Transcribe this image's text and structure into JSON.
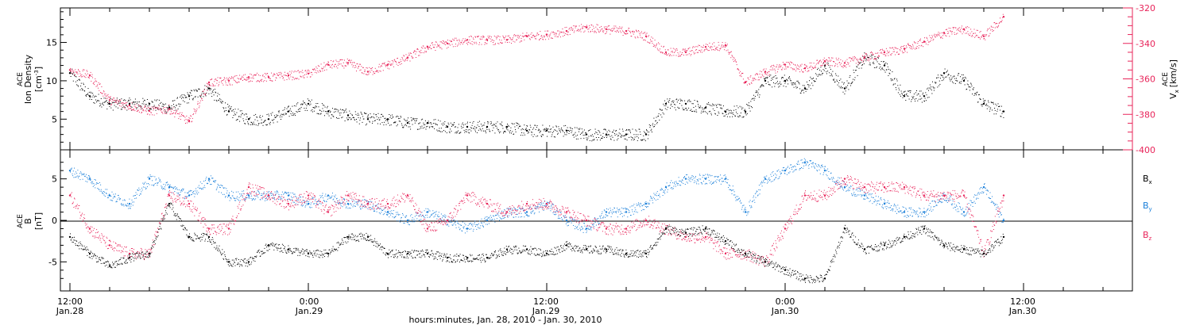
{
  "colors": {
    "black": "#000000",
    "pink": "#e8245a",
    "blue": "#1a7fd9"
  },
  "chart_data": [
    {
      "type": "scatter",
      "panel": "top",
      "ylabel_left": {
        "mission": "ACE",
        "quantity": "Ion Density",
        "unit": "[cm",
        "unit_sup": "-3",
        "unit_end": "]"
      },
      "ylabel_right": {
        "prefix": "V",
        "sub": "x",
        "mission": "ACE",
        "unit": "[km/s]"
      },
      "ylim_left": [
        1,
        19.5
      ],
      "ylim_right": [
        -400,
        -320
      ],
      "yticks_left": [
        5,
        10,
        15
      ],
      "yticks_right": [
        -320,
        -340,
        -360,
        -380,
        -400
      ],
      "series": [
        {
          "name": "Ion Density",
          "axis": "left",
          "color": "#000000",
          "x": [
            0,
            1,
            2,
            3,
            4,
            5,
            6,
            7,
            8,
            9,
            10,
            11,
            12,
            13,
            14,
            15,
            16,
            17,
            18,
            19,
            20,
            21,
            22,
            23,
            24,
            25,
            26,
            27,
            28,
            29,
            30,
            31,
            32,
            33,
            34,
            35,
            36,
            37,
            38,
            39,
            40,
            41,
            42,
            43,
            44,
            45,
            46,
            47
          ],
          "y": [
            11,
            8,
            7,
            7,
            7,
            6.5,
            8,
            9,
            6,
            5,
            5,
            6,
            7,
            6,
            5.5,
            5,
            5,
            4.5,
            4.5,
            4,
            4,
            4,
            4,
            3.5,
            3.5,
            3.5,
            3,
            3,
            3,
            3,
            7,
            7,
            6.5,
            6,
            6,
            10,
            10,
            9,
            12,
            9,
            13,
            12,
            8,
            8,
            11,
            10,
            7,
            6
          ]
        },
        {
          "name": "Vx",
          "axis": "right",
          "color": "#e8245a",
          "x": [
            0,
            1,
            2,
            3,
            4,
            5,
            6,
            7,
            8,
            9,
            10,
            11,
            12,
            13,
            14,
            15,
            16,
            17,
            18,
            19,
            20,
            21,
            22,
            23,
            24,
            25,
            26,
            27,
            28,
            29,
            30,
            31,
            32,
            33,
            34,
            35,
            36,
            37,
            38,
            39,
            40,
            41,
            42,
            43,
            44,
            45,
            46,
            47
          ],
          "y": [
            -355,
            -358,
            -372,
            -375,
            -378,
            -377,
            -384,
            -362,
            -361,
            -359,
            -359,
            -358,
            -357,
            -352,
            -351,
            -356,
            -352,
            -348,
            -342,
            -340,
            -338,
            -338,
            -338,
            -336,
            -335,
            -333,
            -331,
            -332,
            -333,
            -336,
            -345,
            -345,
            -342,
            -341,
            -362,
            -356,
            -352,
            -354,
            -350,
            -351,
            -348,
            -345,
            -343,
            -339,
            -334,
            -332,
            -336,
            -325
          ]
        }
      ]
    },
    {
      "type": "scatter",
      "panel": "bottom",
      "ylabel_left": {
        "mission": "ACE",
        "quantity": "B",
        "unit": "[nT]"
      },
      "legend": [
        {
          "prefix": "B",
          "sub": "x",
          "color": "#000000"
        },
        {
          "prefix": "B",
          "sub": "y",
          "color": "#1a7fd9"
        },
        {
          "prefix": "B",
          "sub": "z",
          "color": "#e8245a"
        }
      ],
      "ylim": [
        -8.5,
        8.5
      ],
      "yticks": [
        -5,
        0,
        5
      ],
      "series": [
        {
          "name": "Bx",
          "color": "#000000",
          "x": [
            0,
            1,
            2,
            3,
            4,
            5,
            6,
            7,
            8,
            9,
            10,
            11,
            12,
            13,
            14,
            15,
            16,
            17,
            18,
            19,
            20,
            21,
            22,
            23,
            24,
            25,
            26,
            27,
            28,
            29,
            30,
            31,
            32,
            33,
            34,
            35,
            36,
            37,
            38,
            39,
            40,
            41,
            42,
            43,
            44,
            45,
            46,
            47
          ],
          "y": [
            -2,
            -4,
            -5.5,
            -4.5,
            -4,
            2,
            -2,
            -2,
            -5,
            -5,
            -3,
            -3.5,
            -4,
            -4,
            -2,
            -2,
            -4,
            -4,
            -4,
            -4.5,
            -4.5,
            -4.5,
            -3.5,
            -3.5,
            -4,
            -3,
            -3.5,
            -3.5,
            -4,
            -4,
            -1,
            -1.5,
            -1,
            -2.5,
            -4,
            -5,
            -6,
            -7,
            -7,
            -1,
            -3.5,
            -3,
            -2,
            -1,
            -3,
            -3.5,
            -4,
            -2
          ]
        },
        {
          "name": "By",
          "color": "#1a7fd9",
          "x": [
            0,
            1,
            2,
            3,
            4,
            5,
            6,
            7,
            8,
            9,
            10,
            11,
            12,
            13,
            14,
            15,
            16,
            17,
            18,
            19,
            20,
            21,
            22,
            23,
            24,
            25,
            26,
            27,
            28,
            29,
            30,
            31,
            32,
            33,
            34,
            35,
            36,
            37,
            38,
            39,
            40,
            41,
            42,
            43,
            44,
            45,
            46,
            47
          ],
          "y": [
            6,
            5,
            3,
            2,
            5,
            4,
            3,
            5,
            3,
            3,
            3,
            3,
            2,
            3,
            2,
            2,
            1,
            0,
            1,
            0,
            -1,
            0,
            1,
            1,
            2,
            0,
            -1,
            1,
            1,
            2,
            4,
            5,
            5,
            5,
            1,
            5,
            6,
            7,
            6,
            4,
            3,
            2,
            1,
            1,
            3,
            1,
            4,
            0
          ]
        },
        {
          "name": "Bz",
          "color": "#e8245a",
          "x": [
            0,
            1,
            2,
            3,
            4,
            5,
            6,
            7,
            8,
            9,
            10,
            11,
            12,
            13,
            14,
            15,
            16,
            17,
            18,
            19,
            20,
            21,
            22,
            23,
            24,
            25,
            26,
            27,
            28,
            29,
            30,
            31,
            32,
            33,
            34,
            35,
            36,
            37,
            38,
            39,
            40,
            41,
            42,
            43,
            44,
            45,
            46,
            47
          ],
          "y": [
            3,
            -1,
            -3,
            -4,
            -4,
            3,
            2,
            -1,
            -1,
            4,
            3,
            2,
            3,
            1,
            3,
            2,
            2,
            3,
            -1,
            0,
            3,
            2,
            1,
            2,
            2,
            1,
            0,
            -1,
            -1,
            0,
            -1,
            -2,
            -2,
            -4,
            -4,
            -5,
            -1,
            3,
            3,
            5,
            4,
            4,
            4,
            3,
            3,
            3,
            -4,
            3
          ]
        }
      ]
    }
  ],
  "xaxis": {
    "ticks": [
      {
        "time": "12:00",
        "date": "Jan.28",
        "h": 0
      },
      {
        "time": "0:00",
        "date": "Jan.29",
        "h": 12
      },
      {
        "time": "12:00",
        "date": "Jan.29",
        "h": 24
      },
      {
        "time": "0:00",
        "date": "Jan.30",
        "h": 36
      },
      {
        "time": "12:00",
        "date": "Jan.30",
        "h": 48
      }
    ],
    "xlabel": "hours:minutes, Jan. 28, 2010 - Jan. 30, 2010",
    "range_h": [
      0,
      56
    ]
  }
}
